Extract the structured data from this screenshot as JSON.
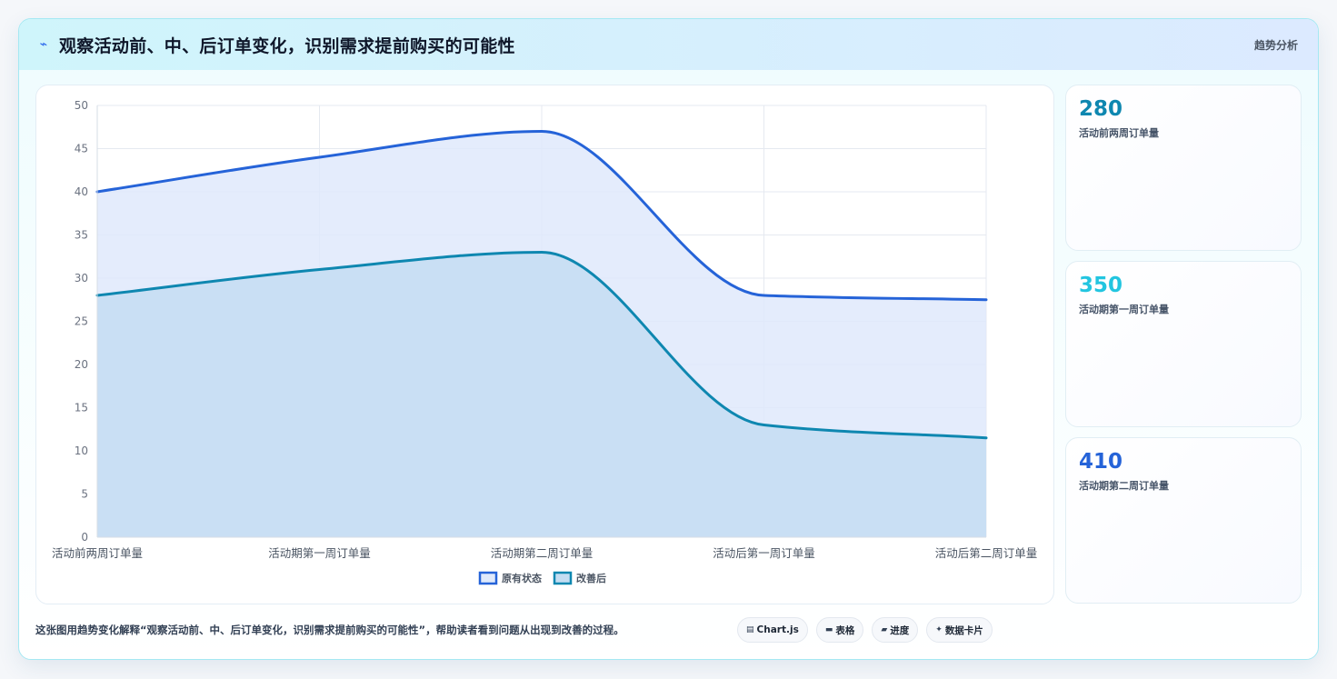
{
  "header": {
    "icon": "trend-line-icon",
    "title": "观察活动前、中、后订单变化，识别需求提前购买的可能性",
    "tag": "趋势分析"
  },
  "chart_data": {
    "type": "area",
    "title": "",
    "xlabel": "",
    "ylabel": "",
    "categories": [
      "活动前两周订单量",
      "活动期第一周订单量",
      "活动期第二周订单量",
      "活动后第一周订单量",
      "活动后第二周订单量"
    ],
    "ylim": [
      0,
      50
    ],
    "yticks": [
      0,
      5,
      10,
      15,
      20,
      25,
      30,
      35,
      40,
      45,
      50
    ],
    "grid": true,
    "legend_position": "bottom",
    "series": [
      {
        "name": "原有状态",
        "values": [
          40,
          44,
          47,
          28,
          27.5
        ],
        "color": "#2563d8",
        "fill": "#dfe9fb"
      },
      {
        "name": "改善后",
        "values": [
          28,
          31,
          33,
          13,
          11.5
        ],
        "color": "#0e87b0",
        "fill": "#c4ddf2"
      }
    ]
  },
  "stats": [
    {
      "value": "280",
      "label": "活动前两周订单量",
      "color": "#0e87b0"
    },
    {
      "value": "350",
      "label": "活动期第一周订单量",
      "color": "#22c5e0"
    },
    {
      "value": "410",
      "label": "活动期第二周订单量",
      "color": "#2563d8"
    }
  ],
  "footer": {
    "text": "这张图用趋势变化解释“观察活动前、中、后订单变化，识别需求提前购买的可能性”，帮助读者看到问题从出现到改善的过程。",
    "pills": [
      {
        "icon": "chart-icon",
        "glyph": "▤",
        "label": "Chart.js"
      },
      {
        "icon": "table-icon",
        "glyph": "▬",
        "label": "表格"
      },
      {
        "icon": "progress-icon",
        "glyph": "▰",
        "label": "进度"
      },
      {
        "icon": "card-icon",
        "glyph": "✦",
        "label": "数据卡片"
      }
    ]
  }
}
